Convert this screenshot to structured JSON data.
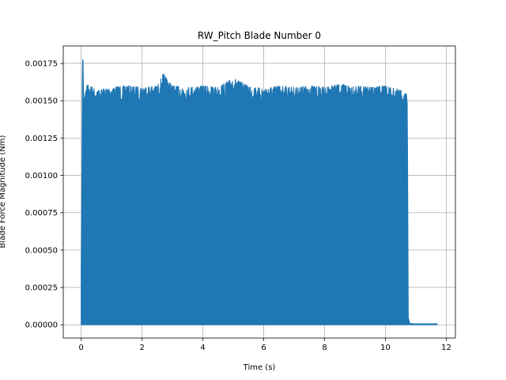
{
  "chart_data": {
    "type": "line",
    "title": "RW_Pitch Blade Number 0",
    "xlabel": "Time (s)",
    "ylabel": "Blade Force Magnitude (Nm)",
    "xlim": [
      -0.59,
      12.3
    ],
    "ylim": [
      -8.89e-05,
      0.001867
    ],
    "xticks": [
      0,
      2,
      4,
      6,
      8,
      10,
      12
    ],
    "xtick_labels": [
      "0",
      "2",
      "4",
      "6",
      "8",
      "10",
      "12"
    ],
    "yticks": [
      0,
      0.00025,
      0.0005,
      0.00075,
      0.001,
      0.00125,
      0.0015,
      0.00175
    ],
    "ytick_labels": [
      "0.00000",
      "0.00025",
      "0.00050",
      "0.00075",
      "0.00100",
      "0.00125",
      "0.00150",
      "0.00175"
    ],
    "grid": true,
    "color": "#1f77b4",
    "series": [
      {
        "description": "rapidly oscillating signal between ~0 and the upper envelope",
        "lower_envelope": 0.0,
        "upper_envelope": {
          "x": [
            0.0,
            0.02,
            0.04,
            0.06,
            0.08,
            0.1,
            0.2,
            0.5,
            1.0,
            1.5,
            2.0,
            2.5,
            2.7,
            3.0,
            3.5,
            4.0,
            4.5,
            5.0,
            5.5,
            6.0,
            6.5,
            7.0,
            7.5,
            8.0,
            8.5,
            9.0,
            9.5,
            10.0,
            10.5,
            10.65,
            10.72,
            10.75,
            10.8,
            11.0,
            11.5,
            11.7
          ],
          "y": [
            0.0004,
            0.00086,
            0.00178,
            0.00177,
            0.00152,
            0.0015,
            0.00162,
            0.00157,
            0.00159,
            0.0016,
            0.00159,
            0.0016,
            0.00168,
            0.0016,
            0.00159,
            0.0016,
            0.00159,
            0.00165,
            0.0016,
            0.00158,
            0.0016,
            0.00159,
            0.0016,
            0.00159,
            0.00161,
            0.0016,
            0.00159,
            0.0016,
            0.00157,
            0.00155,
            0.00154,
            5e-05,
            1e-05,
            5e-06,
            5e-06,
            5e-06
          ]
        }
      }
    ]
  }
}
